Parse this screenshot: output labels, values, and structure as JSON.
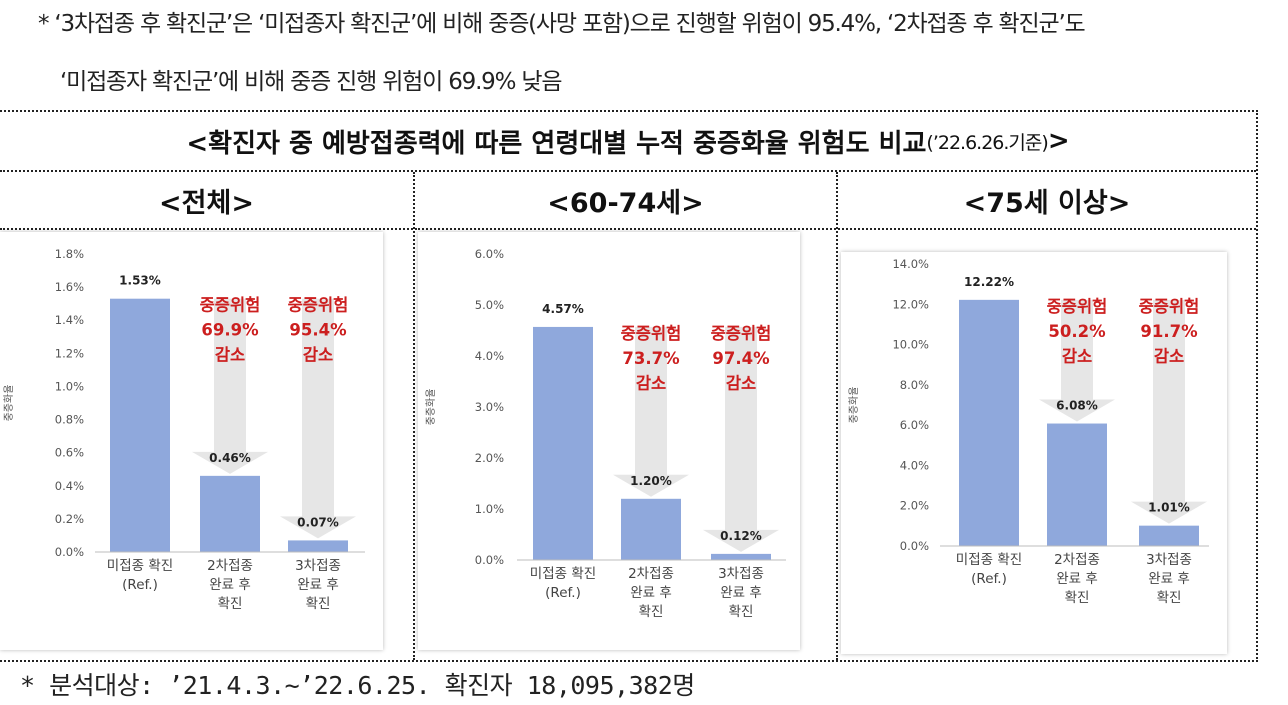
{
  "notes": {
    "line1": "* ‘3차접종 후 확진군’은 ‘미접종자 확진군’에 비해 중증(사망 포함)으로 진행할 위험이 95.4%, ‘2차접종 후 확진군’도",
    "line2": "‘미접종자 확진군’에 비해 중증 진행 위험이 69.9% 낮음"
  },
  "title": {
    "main": "<확진자 중 예방접종력에 따른 연령대별 누적 중증화율 위험도 비교",
    "date": "(’22.6.26.기준)",
    "close": ">"
  },
  "footnote": "* 분석대상: ’21.4.3.~’22.6.25. 확진자 18,095,382명",
  "colors": {
    "bar": "#8FA8DC",
    "risk_text": "#CC1F1F",
    "arrow": "#E6E6E6",
    "axis_text": "#555555"
  },
  "chart_data": [
    {
      "type": "bar",
      "panel_title": "<전체>",
      "ylabel": "중증화율",
      "categories": [
        [
          "미접종 확진",
          "(Ref.)"
        ],
        [
          "2차접종",
          "완료 후",
          "확진"
        ],
        [
          "3차접종",
          "완료 후",
          "확진"
        ]
      ],
      "values": [
        1.53,
        0.46,
        0.07
      ],
      "value_labels": [
        "1.53%",
        "0.46%",
        "0.07%"
      ],
      "ylim": [
        0,
        1.8
      ],
      "yticks": [
        0.0,
        0.2,
        0.4,
        0.6,
        0.8,
        1.0,
        1.2,
        1.4,
        1.6,
        1.8
      ],
      "ytick_labels": [
        "0.0%",
        "0.2%",
        "0.4%",
        "0.6%",
        "0.8%",
        "1.0%",
        "1.2%",
        "1.4%",
        "1.6%",
        "1.8%"
      ],
      "annotations": [
        {
          "bar": 1,
          "lines": [
            "중증위험",
            "69.9%",
            "감소"
          ]
        },
        {
          "bar": 2,
          "lines": [
            "중증위험",
            "95.4%",
            "감소"
          ]
        }
      ]
    },
    {
      "type": "bar",
      "panel_title": "<60-74세>",
      "ylabel": "중증화율",
      "categories": [
        [
          "미접종 확진",
          "(Ref.)"
        ],
        [
          "2차접종",
          "완료 후",
          "확진"
        ],
        [
          "3차접종",
          "완료 후",
          "확진"
        ]
      ],
      "values": [
        4.57,
        1.2,
        0.12
      ],
      "value_labels": [
        "4.57%",
        "1.20%",
        "0.12%"
      ],
      "ylim": [
        0,
        6.0
      ],
      "yticks": [
        0,
        1,
        2,
        3,
        4,
        5,
        6
      ],
      "ytick_labels": [
        "0.0%",
        "1.0%",
        "2.0%",
        "3.0%",
        "4.0%",
        "5.0%",
        "6.0%"
      ],
      "annotations": [
        {
          "bar": 1,
          "lines": [
            "중증위험",
            "73.7%",
            "감소"
          ]
        },
        {
          "bar": 2,
          "lines": [
            "중증위험",
            "97.4%",
            "감소"
          ]
        }
      ]
    },
    {
      "type": "bar",
      "panel_title": "<75세 이상>",
      "ylabel": "중증화율",
      "categories": [
        [
          "미접종 확진",
          "(Ref.)"
        ],
        [
          "2차접종",
          "완료 후",
          "확진"
        ],
        [
          "3차접종",
          "완료 후",
          "확진"
        ]
      ],
      "values": [
        12.22,
        6.08,
        1.01
      ],
      "value_labels": [
        "12.22%",
        "6.08%",
        "1.01%"
      ],
      "ylim": [
        0,
        14.0
      ],
      "yticks": [
        0,
        2,
        4,
        6,
        8,
        10,
        12,
        14
      ],
      "ytick_labels": [
        "0.0%",
        "2.0%",
        "4.0%",
        "6.0%",
        "8.0%",
        "10.0%",
        "12.0%",
        "14.0%"
      ],
      "annotations": [
        {
          "bar": 1,
          "lines": [
            "중증위험",
            "50.2%",
            "감소"
          ]
        },
        {
          "bar": 2,
          "lines": [
            "중증위험",
            "91.7%",
            "감소"
          ]
        }
      ]
    }
  ]
}
